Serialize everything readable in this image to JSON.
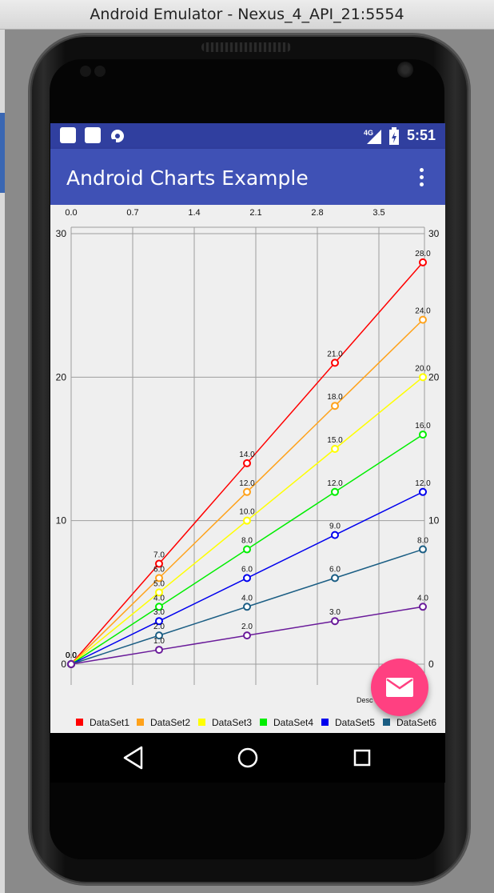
{
  "window": {
    "title": "Android Emulator - Nexus_4_API_21:5554"
  },
  "status_bar": {
    "time": "5:51",
    "network": "4G",
    "bg": "#303f9f"
  },
  "app_bar": {
    "title": "Android Charts Example",
    "bg": "#3f51b5",
    "menu_icon": "overflow-menu-icon"
  },
  "fab": {
    "icon": "email-icon",
    "color": "#ff4081"
  },
  "chart_data": {
    "type": "line",
    "x": [
      0,
      1,
      2,
      3,
      4
    ],
    "xlim": [
      0,
      4
    ],
    "x_ticks": [
      "0.0",
      "0.7",
      "1.4",
      "2.1",
      "2.8",
      "3.5"
    ],
    "ylim": [
      0,
      30
    ],
    "y_ticks_left": [
      "0",
      "10",
      "20",
      "30"
    ],
    "y_ticks_right": [
      "0",
      "10",
      "20",
      "30"
    ],
    "grid": true,
    "description": "Desc",
    "legend_position": "bottom",
    "series": [
      {
        "name": "DataSet1",
        "color": "#ff0000",
        "values": [
          0,
          7,
          14,
          21,
          28
        ],
        "labels": [
          "0.0",
          "7.0",
          "14.0",
          "21.0",
          "28.0"
        ]
      },
      {
        "name": "DataSet2",
        "color": "#ffa21a",
        "values": [
          0,
          6,
          12,
          18,
          24
        ],
        "labels": [
          "0.0",
          "6.0",
          "12.0",
          "18.0",
          "24.0"
        ]
      },
      {
        "name": "DataSet3",
        "color": "#ffff00",
        "values": [
          0,
          5,
          10,
          15,
          20
        ],
        "labels": [
          "0.0",
          "5.0",
          "10.0",
          "15.0",
          "20.0"
        ]
      },
      {
        "name": "DataSet4",
        "color": "#00ee00",
        "values": [
          0,
          4,
          8,
          12,
          16
        ],
        "labels": [
          "0.0",
          "4.0",
          "8.0",
          "12.0",
          "16.0"
        ]
      },
      {
        "name": "DataSet5",
        "color": "#0000ee",
        "values": [
          0,
          3,
          6,
          9,
          12
        ],
        "labels": [
          "0.0",
          "3.0",
          "6.0",
          "9.0",
          "12.0"
        ]
      },
      {
        "name": "DataSet6",
        "color": "#1b5e84",
        "values": [
          0,
          2,
          4,
          6,
          8
        ],
        "labels": [
          "0.0",
          "2.0",
          "4.0",
          "6.0",
          "8.0"
        ]
      },
      {
        "name": "",
        "color": "#6a1b9a",
        "values": [
          0,
          1,
          2,
          3,
          4
        ],
        "labels": [
          "0.0",
          "1.0",
          "2.0",
          "3.0",
          "4.0"
        ]
      }
    ]
  },
  "nav_bar": {
    "back_icon": "back-triangle-icon",
    "home_icon": "home-circle-icon",
    "recents_icon": "recents-square-icon"
  }
}
